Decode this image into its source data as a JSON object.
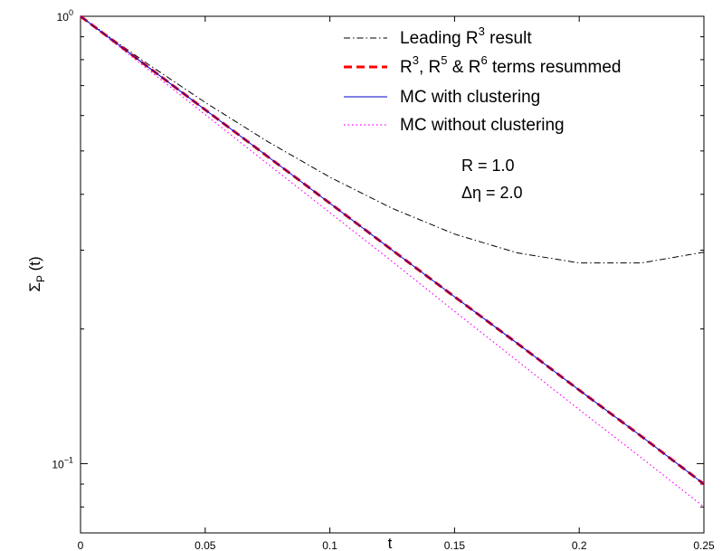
{
  "chart_data": {
    "type": "line",
    "xlabel": "t",
    "ylabel": {
      "base": "Σ",
      "sub": "P",
      "rest": " (t)"
    },
    "xlim": [
      0,
      0.25
    ],
    "ylim": [
      0.07,
      1.0
    ],
    "yscale": "log",
    "grid": false,
    "legend_position": "top-right",
    "x_ticks": [
      {
        "value": 0,
        "label": "0"
      },
      {
        "value": 0.05,
        "label": "0.05"
      },
      {
        "value": 0.1,
        "label": "0.1"
      },
      {
        "value": 0.15,
        "label": "0.15"
      },
      {
        "value": 0.2,
        "label": "0.2"
      },
      {
        "value": 0.25,
        "label": "0.25"
      }
    ],
    "y_major_ticks": [
      {
        "value": 0.1,
        "base": "10",
        "exp": "−1"
      },
      {
        "value": 1.0,
        "base": "10",
        "exp": "0"
      }
    ],
    "y_minor_ticks": [
      0.08,
      0.09,
      0.2,
      0.3,
      0.4,
      0.5,
      0.6,
      0.7,
      0.8,
      0.9
    ],
    "series": [
      {
        "name": "Leading R3 result",
        "legend_parts": [
          {
            "t": "Leading R",
            "sup": false
          },
          {
            "t": "3",
            "sup": true
          },
          {
            "t": " result",
            "sup": false
          }
        ],
        "color": "#000000",
        "dash": "7,3,1.5,3",
        "width": 1,
        "x": [
          0,
          0.025,
          0.05,
          0.075,
          0.1,
          0.125,
          0.15,
          0.175,
          0.2,
          0.225,
          0.25
        ],
        "y": [
          1.0,
          0.796,
          0.642,
          0.525,
          0.437,
          0.372,
          0.326,
          0.296,
          0.281,
          0.281,
          0.297
        ]
      },
      {
        "name": "R3, R5 & R6 terms resummed",
        "legend_parts": [
          {
            "t": "R",
            "sup": false
          },
          {
            "t": "3",
            "sup": true
          },
          {
            "t": ", R",
            "sup": false
          },
          {
            "t": "5",
            "sup": true
          },
          {
            "t": " & R",
            "sup": false
          },
          {
            "t": "6",
            "sup": true
          },
          {
            "t": " terms resummed",
            "sup": false
          }
        ],
        "color": "#ff0000",
        "dash": "9,5",
        "width": 3,
        "x": [
          0,
          0.025,
          0.05,
          0.075,
          0.1,
          0.125,
          0.15,
          0.175,
          0.2,
          0.225,
          0.25
        ],
        "y": [
          1.0,
          0.786,
          0.618,
          0.486,
          0.382,
          0.3,
          0.236,
          0.186,
          0.146,
          0.115,
          0.09
        ]
      },
      {
        "name": "MC with clustering",
        "legend_parts": [
          {
            "t": "MC with clustering",
            "sup": false
          }
        ],
        "color": "#0000cc",
        "dash": "",
        "width": 1,
        "x": [
          0,
          0.025,
          0.05,
          0.075,
          0.1,
          0.125,
          0.15,
          0.175,
          0.2,
          0.225,
          0.25
        ],
        "y": [
          1.0,
          0.786,
          0.618,
          0.486,
          0.382,
          0.3,
          0.236,
          0.186,
          0.146,
          0.115,
          0.09
        ]
      },
      {
        "name": "MC without clustering",
        "legend_parts": [
          {
            "t": "MC without clustering",
            "sup": false
          }
        ],
        "color": "#ff00ff",
        "dash": "1.5,3",
        "width": 1.2,
        "x": [
          0,
          0.025,
          0.05,
          0.075,
          0.1,
          0.125,
          0.15,
          0.175,
          0.2,
          0.225,
          0.25
        ],
        "y": [
          1.0,
          0.777,
          0.603,
          0.468,
          0.364,
          0.283,
          0.219,
          0.17,
          0.132,
          0.103,
          0.08
        ]
      }
    ],
    "annotations": [
      "R = 1.0",
      "Δη = 2.0"
    ]
  }
}
